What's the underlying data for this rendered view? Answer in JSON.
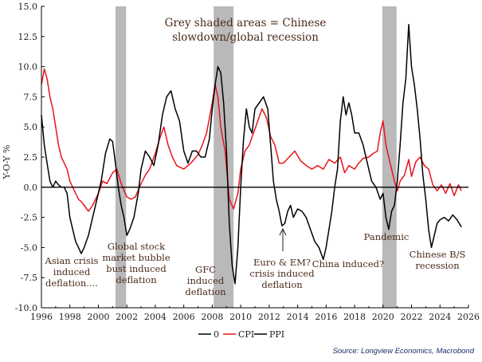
{
  "chart_data": {
    "type": "line",
    "ylabel": "Y-O-Y %",
    "xlim": [
      1996,
      2026
    ],
    "ylim": [
      -10,
      15
    ],
    "x_ticks": [
      1996,
      1998,
      2000,
      2002,
      2004,
      2006,
      2008,
      2010,
      2012,
      2014,
      2016,
      2018,
      2020,
      2022,
      2024,
      2026
    ],
    "y_ticks": [
      -10,
      -7.5,
      -5,
      -2.5,
      0,
      2.5,
      5,
      7.5,
      10,
      12.5,
      15
    ],
    "y_tick_labels": [
      "-10.0",
      "-7.5",
      "-5.0",
      "-2.5",
      "0.0",
      "2.5",
      "5.0",
      "7.5",
      "10.0",
      "12.5",
      "15.0"
    ],
    "x_tick_labels": [
      "1996",
      "1998",
      "2000",
      "2002",
      "2004",
      "2006",
      "2008",
      "2010",
      "2012",
      "2014",
      "2016",
      "2018",
      "2020",
      "2022",
      "2024",
      "2026"
    ],
    "shaded_regions": [
      [
        2001.2,
        2001.95
      ],
      [
        2008.1,
        2009.5
      ],
      [
        2019.95,
        2020.95
      ]
    ],
    "series": [
      {
        "name": "0",
        "color": "#000000",
        "x": [
          1996,
          2026
        ],
        "values": [
          0,
          0
        ]
      },
      {
        "name": "CPI",
        "color": "#e8141b",
        "x": [
          1996.0,
          1996.2,
          1996.4,
          1996.6,
          1996.8,
          1997.0,
          1997.2,
          1997.4,
          1997.6,
          1997.8,
          1998.0,
          1998.2,
          1998.4,
          1998.6,
          1998.8,
          1999.0,
          1999.3,
          1999.6,
          2000.0,
          2000.3,
          2000.6,
          2001.0,
          2001.3,
          2001.6,
          2002.0,
          2002.3,
          2002.6,
          2003.0,
          2003.3,
          2003.6,
          2004.0,
          2004.3,
          2004.6,
          2004.9,
          2005.2,
          2005.5,
          2006.0,
          2006.5,
          2007.0,
          2007.3,
          2007.6,
          2008.0,
          2008.2,
          2008.4,
          2008.6,
          2008.9,
          2009.2,
          2009.5,
          2009.8,
          2010.0,
          2010.3,
          2010.6,
          2010.9,
          2011.2,
          2011.5,
          2011.8,
          2012.1,
          2012.4,
          2012.7,
          2013.0,
          2013.4,
          2013.8,
          2014.2,
          2014.6,
          2015.0,
          2015.4,
          2015.8,
          2016.2,
          2016.6,
          2017.0,
          2017.3,
          2017.6,
          2018.0,
          2018.3,
          2018.6,
          2019.0,
          2019.3,
          2019.6,
          2019.8,
          2020.0,
          2020.2,
          2020.4,
          2020.6,
          2020.8,
          2021.0,
          2021.2,
          2021.5,
          2021.8,
          2022.0,
          2022.3,
          2022.6,
          2022.9,
          2023.2,
          2023.5,
          2023.8,
          2024.1,
          2024.4,
          2024.7,
          2025.0,
          2025.3,
          2025.5
        ],
        "values": [
          8.5,
          9.8,
          9.0,
          7.5,
          6.5,
          5.0,
          3.5,
          2.5,
          2.0,
          1.5,
          0.5,
          0,
          -0.5,
          -1.0,
          -1.2,
          -1.5,
          -2.0,
          -1.5,
          -0.5,
          0.5,
          0.3,
          1.2,
          1.5,
          0.3,
          -0.8,
          -1.0,
          -0.8,
          0.3,
          1.0,
          1.5,
          2.8,
          4.0,
          5.0,
          3.5,
          2.5,
          1.8,
          1.5,
          2.0,
          2.7,
          3.5,
          4.5,
          7.0,
          8.5,
          7.5,
          5.0,
          3.0,
          -1.0,
          -1.8,
          -0.5,
          1.5,
          3.0,
          3.5,
          4.5,
          5.5,
          6.5,
          5.8,
          4.2,
          3.5,
          2.0,
          2.0,
          2.5,
          3.0,
          2.2,
          1.8,
          1.5,
          1.8,
          1.5,
          2.3,
          2.0,
          2.5,
          1.2,
          1.8,
          1.5,
          2.0,
          2.4,
          2.5,
          2.8,
          3.0,
          4.5,
          5.5,
          3.5,
          2.5,
          1.5,
          0.5,
          -0.3,
          0.5,
          1.0,
          2.3,
          0.9,
          2.1,
          2.5,
          1.8,
          1.5,
          0.2,
          -0.3,
          0.2,
          -0.5,
          0.3,
          -0.7,
          0.2,
          -0.3
        ]
      },
      {
        "name": "PPI",
        "color": "#000000",
        "x": [
          1996.0,
          1996.2,
          1996.4,
          1996.6,
          1996.8,
          1997.0,
          1997.2,
          1997.4,
          1997.6,
          1997.8,
          1998.0,
          1998.2,
          1998.4,
          1998.6,
          1998.8,
          1999.0,
          1999.3,
          1999.6,
          1999.9,
          2000.2,
          2000.5,
          2000.8,
          2001.0,
          2001.2,
          2001.4,
          2001.6,
          2001.8,
          2002.0,
          2002.2,
          2002.5,
          2002.8,
          2003.0,
          2003.3,
          2003.6,
          2003.9,
          2004.2,
          2004.5,
          2004.8,
          2005.1,
          2005.4,
          2005.7,
          2006.0,
          2006.3,
          2006.6,
          2006.9,
          2007.2,
          2007.5,
          2007.8,
          2008.0,
          2008.2,
          2008.4,
          2008.6,
          2008.8,
          2009.0,
          2009.2,
          2009.4,
          2009.6,
          2009.8,
          2010.0,
          2010.2,
          2010.4,
          2010.6,
          2010.8,
          2011.0,
          2011.3,
          2011.6,
          2011.9,
          2012.1,
          2012.3,
          2012.5,
          2012.7,
          2012.9,
          2013.1,
          2013.3,
          2013.5,
          2013.7,
          2014.0,
          2014.3,
          2014.6,
          2014.9,
          2015.2,
          2015.5,
          2015.8,
          2016.0,
          2016.2,
          2016.4,
          2016.6,
          2016.8,
          2017.0,
          2017.2,
          2017.4,
          2017.6,
          2017.8,
          2018.0,
          2018.3,
          2018.6,
          2018.9,
          2019.2,
          2019.5,
          2019.8,
          2020.0,
          2020.2,
          2020.4,
          2020.6,
          2020.8,
          2021.0,
          2021.2,
          2021.4,
          2021.6,
          2021.8,
          2022.0,
          2022.2,
          2022.4,
          2022.6,
          2022.8,
          2023.0,
          2023.2,
          2023.4,
          2023.6,
          2023.8,
          2024.0,
          2024.3,
          2024.6,
          2024.9,
          2025.2,
          2025.5
        ],
        "values": [
          6.0,
          3.5,
          2.0,
          0.5,
          0,
          0.5,
          0.2,
          0,
          0,
          -0.5,
          -2.5,
          -3.5,
          -4.5,
          -5.0,
          -5.5,
          -5.0,
          -4.0,
          -2.5,
          -1.0,
          0.5,
          2.8,
          4.0,
          3.8,
          2.0,
          0,
          -1.5,
          -2.5,
          -4.0,
          -3.5,
          -2.5,
          -0.5,
          1.5,
          3.0,
          2.5,
          1.8,
          3.5,
          6.0,
          7.5,
          8.0,
          6.5,
          5.5,
          3.0,
          2.0,
          3.0,
          3.0,
          2.5,
          2.5,
          4.0,
          6.5,
          8.5,
          10.0,
          9.5,
          7.0,
          3.0,
          -3.0,
          -6.5,
          -8.0,
          -5.0,
          0,
          4.0,
          6.5,
          5.0,
          4.5,
          6.5,
          7.0,
          7.5,
          6.5,
          3.5,
          0.5,
          -1.0,
          -2.0,
          -3.2,
          -3.0,
          -2.0,
          -1.5,
          -2.5,
          -1.8,
          -2.0,
          -2.5,
          -3.5,
          -4.5,
          -5.0,
          -6.0,
          -5.0,
          -3.5,
          -2.0,
          0,
          1.5,
          5.5,
          7.5,
          6.0,
          7.0,
          6.0,
          4.5,
          4.5,
          3.5,
          2.0,
          0.5,
          0,
          -1.0,
          -0.5,
          -2.5,
          -3.5,
          -2.0,
          -1.5,
          0.5,
          3.5,
          7.0,
          9.0,
          13.5,
          10.0,
          8.5,
          6.5,
          4.0,
          1.0,
          -1.0,
          -3.5,
          -5.0,
          -4.0,
          -3.0,
          -2.7,
          -2.5,
          -2.8,
          -2.3,
          -2.7,
          -3.3
        ]
      }
    ]
  },
  "annotations": {
    "shaded_note_line1": "Grey shaded areas = Chinese",
    "shaded_note_line2": "slowdown/global recession",
    "asian_line1": "Asian crisis",
    "asian_line2": "induced",
    "asian_line3": "deflation....",
    "global_line1": "Global stock",
    "global_line2": "market bubble",
    "global_line3": "bust induced",
    "global_line4": "deflation",
    "gfc_line1": "GFC",
    "gfc_line2": "induced",
    "gfc_line3": "deflation",
    "euro_line1": "Euro & EM?",
    "euro_line2": "crisis induced",
    "euro_line3": "deflation",
    "china_induced": "China induced?",
    "pandemic": "Pandemic",
    "chinese_bs_line1": "Chinese B/S",
    "chinese_bs_line2": "recession"
  },
  "legend": {
    "zero_label": "0",
    "cpi_label": "CPI",
    "ppi_label": "PPI"
  },
  "source": "Source: Longview Economics, Macrobond"
}
